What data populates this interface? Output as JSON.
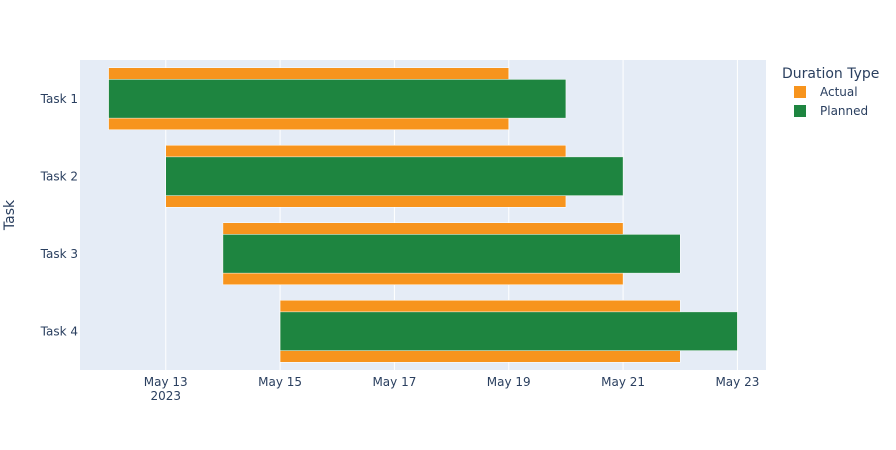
{
  "chart_data": {
    "type": "gantt",
    "title": "",
    "xlabel": "",
    "ylabel": "Task",
    "xlim": [
      "2023-05-11T12:00",
      "2023-05-23T12:00"
    ],
    "x_ticks": [
      {
        "date": "2023-05-13",
        "label": "May 13",
        "sublabel": "2023"
      },
      {
        "date": "2023-05-15",
        "label": "May 15",
        "sublabel": ""
      },
      {
        "date": "2023-05-17",
        "label": "May 17",
        "sublabel": ""
      },
      {
        "date": "2023-05-19",
        "label": "May 19",
        "sublabel": ""
      },
      {
        "date": "2023-05-21",
        "label": "May 21",
        "sublabel": ""
      },
      {
        "date": "2023-05-23",
        "label": "May 23",
        "sublabel": ""
      }
    ],
    "categories": [
      "Task 1",
      "Task 2",
      "Task 3",
      "Task 4"
    ],
    "legend": {
      "title": "Duration Type",
      "placement": "right"
    },
    "series": [
      {
        "name": "Actual",
        "color": "#f7941d",
        "tasks": [
          {
            "task": "Task 1",
            "start": "2023-05-12",
            "end": "2023-05-19"
          },
          {
            "task": "Task 2",
            "start": "2023-05-13",
            "end": "2023-05-20"
          },
          {
            "task": "Task 3",
            "start": "2023-05-14",
            "end": "2023-05-21"
          },
          {
            "task": "Task 4",
            "start": "2023-05-15",
            "end": "2023-05-22"
          }
        ]
      },
      {
        "name": "Planned",
        "color": "#1e8540",
        "tasks": [
          {
            "task": "Task 1",
            "start": "2023-05-12",
            "end": "2023-05-20"
          },
          {
            "task": "Task 2",
            "start": "2023-05-13",
            "end": "2023-05-21"
          },
          {
            "task": "Task 3",
            "start": "2023-05-14",
            "end": "2023-05-22"
          },
          {
            "task": "Task 4",
            "start": "2023-05-15",
            "end": "2023-05-23"
          }
        ]
      }
    ],
    "grid": true,
    "plot_bg": "#e5ecf6"
  }
}
